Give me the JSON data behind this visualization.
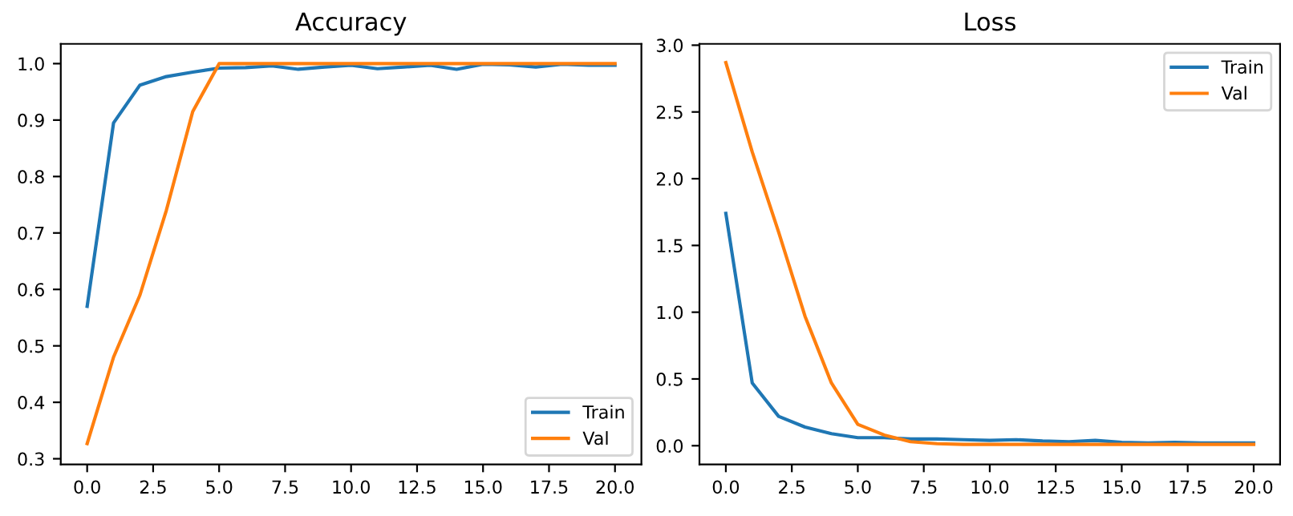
{
  "chart_data": [
    {
      "type": "line",
      "title": "Accuracy",
      "x": [
        0,
        1,
        2,
        3,
        4,
        5,
        6,
        7,
        8,
        9,
        10,
        11,
        12,
        13,
        14,
        15,
        16,
        17,
        18,
        19,
        20
      ],
      "series": [
        {
          "name": "Train",
          "color": "#1f77b4",
          "values": [
            0.57,
            0.895,
            0.962,
            0.977,
            0.985,
            0.992,
            0.993,
            0.996,
            0.99,
            0.994,
            0.997,
            0.991,
            0.994,
            0.997,
            0.99,
            0.999,
            0.998,
            0.994,
            0.999,
            0.997,
            0.997
          ]
        },
        {
          "name": "Val",
          "color": "#ff7f0e",
          "values": [
            0.327,
            0.48,
            0.59,
            0.74,
            0.915,
            1.0,
            1.0,
            1.0,
            1.0,
            1.0,
            1.0,
            1.0,
            1.0,
            1.0,
            1.0,
            1.0,
            1.0,
            1.0,
            1.0,
            1.0,
            1.0
          ]
        }
      ],
      "xlim": [
        -1,
        21
      ],
      "ylim": [
        0.29,
        1.035
      ],
      "xticks": [
        {
          "value": 0,
          "label": "0.0"
        },
        {
          "value": 2.5,
          "label": "2.5"
        },
        {
          "value": 5,
          "label": "5.0"
        },
        {
          "value": 7.5,
          "label": "7.5"
        },
        {
          "value": 10,
          "label": "10.0"
        },
        {
          "value": 12.5,
          "label": "12.5"
        },
        {
          "value": 15,
          "label": "15.0"
        },
        {
          "value": 17.5,
          "label": "17.5"
        },
        {
          "value": 20,
          "label": "20.0"
        }
      ],
      "yticks": [
        0.3,
        0.4,
        0.5,
        0.6,
        0.7,
        0.8,
        0.9,
        {
          "value": 1,
          "label": "1.0"
        }
      ],
      "legend": "bottom right",
      "grid": false
    },
    {
      "type": "line",
      "title": "Loss",
      "x": [
        0,
        1,
        2,
        3,
        4,
        5,
        6,
        7,
        8,
        9,
        10,
        11,
        12,
        13,
        14,
        15,
        16,
        17,
        18,
        19,
        20
      ],
      "series": [
        {
          "name": "Train",
          "color": "#1f77b4",
          "values": [
            1.74,
            0.47,
            0.22,
            0.14,
            0.09,
            0.06,
            0.06,
            0.05,
            0.05,
            0.045,
            0.04,
            0.045,
            0.035,
            0.03,
            0.04,
            0.025,
            0.02,
            0.025,
            0.02,
            0.02,
            0.02
          ]
        },
        {
          "name": "Val",
          "color": "#ff7f0e",
          "values": [
            2.87,
            2.2,
            1.6,
            0.97,
            0.47,
            0.16,
            0.08,
            0.03,
            0.015,
            0.01,
            0.01,
            0.01,
            0.01,
            0.01,
            0.01,
            0.01,
            0.01,
            0.01,
            0.01,
            0.01,
            0.01
          ]
        }
      ],
      "xlim": [
        -1,
        21
      ],
      "ylim": [
        -0.14,
        3.01
      ],
      "xticks": [
        {
          "value": 0,
          "label": "0.0"
        },
        {
          "value": 2.5,
          "label": "2.5"
        },
        {
          "value": 5,
          "label": "5.0"
        },
        {
          "value": 7.5,
          "label": "7.5"
        },
        {
          "value": 10,
          "label": "10.0"
        },
        {
          "value": 12.5,
          "label": "12.5"
        },
        {
          "value": 15,
          "label": "15.0"
        },
        {
          "value": 17.5,
          "label": "17.5"
        },
        {
          "value": 20,
          "label": "20.0"
        }
      ],
      "yticks": [
        {
          "value": 0,
          "label": "0.0"
        },
        0.5,
        {
          "value": 1,
          "label": "1.0"
        },
        1.5,
        {
          "value": 2,
          "label": "2.0"
        },
        2.5,
        {
          "value": 3,
          "label": "3.0"
        }
      ],
      "legend": "top right",
      "grid": false
    }
  ]
}
